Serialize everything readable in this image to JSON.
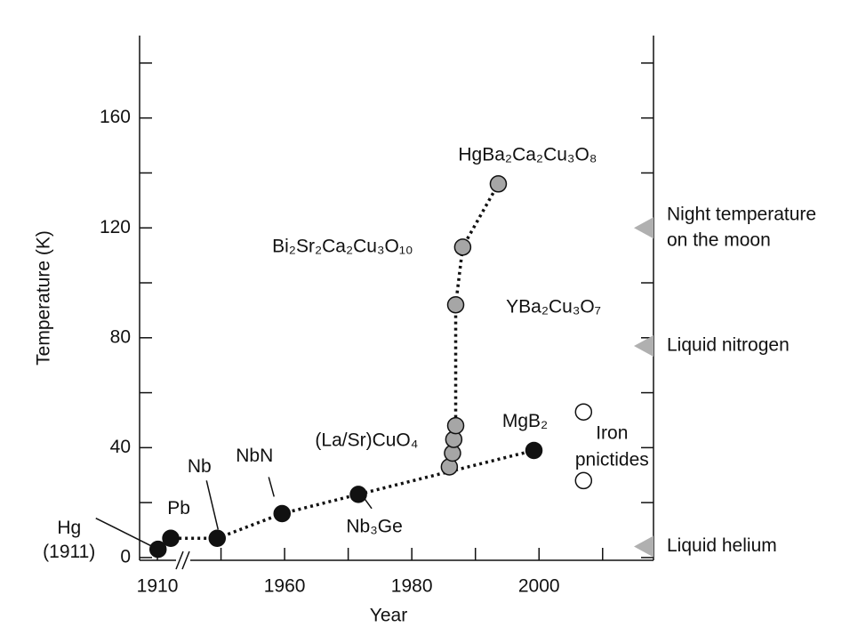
{
  "chart_data": {
    "type": "scatter",
    "xlabel": "Year",
    "ylabel": "Temperature (K)",
    "xlim": [
      1937.2,
      2018
    ],
    "ylim": [
      -1,
      190
    ],
    "xticks": [
      {
        "value": 1940,
        "label": "1910"
      },
      1960,
      1980,
      2000
    ],
    "xminor_ticks": [
      1950,
      1970,
      1990,
      2010
    ],
    "yticks": [
      0,
      40,
      80,
      120,
      160
    ],
    "yminor_ticks": [
      20,
      60,
      100,
      140,
      180
    ],
    "line_style": "dotted",
    "series": [
      {
        "color": "#111111",
        "x": [
          1940.1,
          1942.1,
          1949.4,
          1959.6,
          1971.6,
          1999.2
        ],
        "values": [
          3,
          7,
          7,
          16,
          23,
          39
        ],
        "labels": [
          [
            "Hg",
            "(1911)"
          ],
          "Pb",
          "Nb",
          "NbN",
          "Nb₃Ge",
          "MgB₂"
        ],
        "connected": true
      },
      {
        "color": "#a6a6a6",
        "x": [
          1985.9,
          1986.4,
          1986.6,
          1986.9,
          1986.9,
          1988,
          1993.6
        ],
        "values": [
          33,
          38,
          43,
          48,
          92,
          113,
          136
        ],
        "labels": [
          "(La/Sr)CuO₄",
          null,
          null,
          null,
          "YBa₂Cu₃O₇",
          "Bi₂Sr₂Ca₂Cu₃O₁₀",
          "HgBa₂Ca₂Cu₃O₈"
        ],
        "connected": true
      },
      {
        "color": "#ffffff",
        "x": [
          2007,
          2007
        ],
        "values": [
          53,
          28
        ],
        "label": [
          "Iron",
          "pnictides"
        ],
        "connected": false
      }
    ],
    "reference_lines": [
      {
        "value": 120,
        "label": [
          "Night temperature",
          "on the moon"
        ]
      },
      {
        "value": 77,
        "label": [
          "Liquid nitrogen"
        ]
      },
      {
        "value": 4,
        "label": [
          "Liquid helium"
        ]
      }
    ]
  }
}
